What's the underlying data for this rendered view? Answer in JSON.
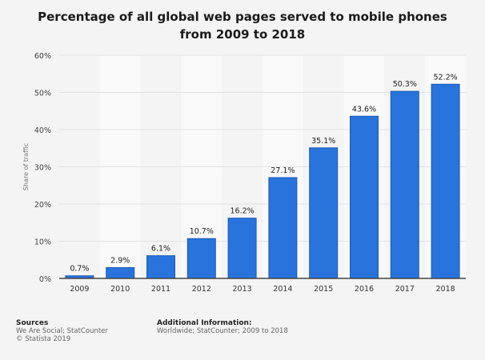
{
  "chart_data": {
    "type": "bar",
    "title": "Percentage of all global web pages served to mobile phones from 2009 to 2018",
    "xlabel": "",
    "ylabel": "Share of traffic",
    "categories": [
      "2009",
      "2010",
      "2011",
      "2012",
      "2013",
      "2014",
      "2015",
      "2016",
      "2017",
      "2018"
    ],
    "values": [
      0.7,
      2.9,
      6.1,
      10.7,
      16.2,
      27.1,
      35.1,
      43.6,
      50.3,
      52.2
    ],
    "data_labels": [
      "0.7%",
      "2.9%",
      "6.1%",
      "10.7%",
      "16.2%",
      "27.1%",
      "35.1%",
      "43.6%",
      "50.3%",
      "52.2%"
    ],
    "ylim": [
      0,
      60
    ],
    "yticks": [
      0,
      10,
      20,
      30,
      40,
      50,
      60
    ],
    "ytick_labels": [
      "0%",
      "10%",
      "20%",
      "30%",
      "40%",
      "50%",
      "60%"
    ],
    "grid": true,
    "bar_color": "#2873dc"
  },
  "footer": {
    "sources_heading": "Sources",
    "sources": "We Are Social; StatCounter",
    "copyright": "© Statista 2019",
    "additional_heading": "Additional Information:",
    "additional": "Worldwide; StatCounter; 2009 to 2018"
  }
}
